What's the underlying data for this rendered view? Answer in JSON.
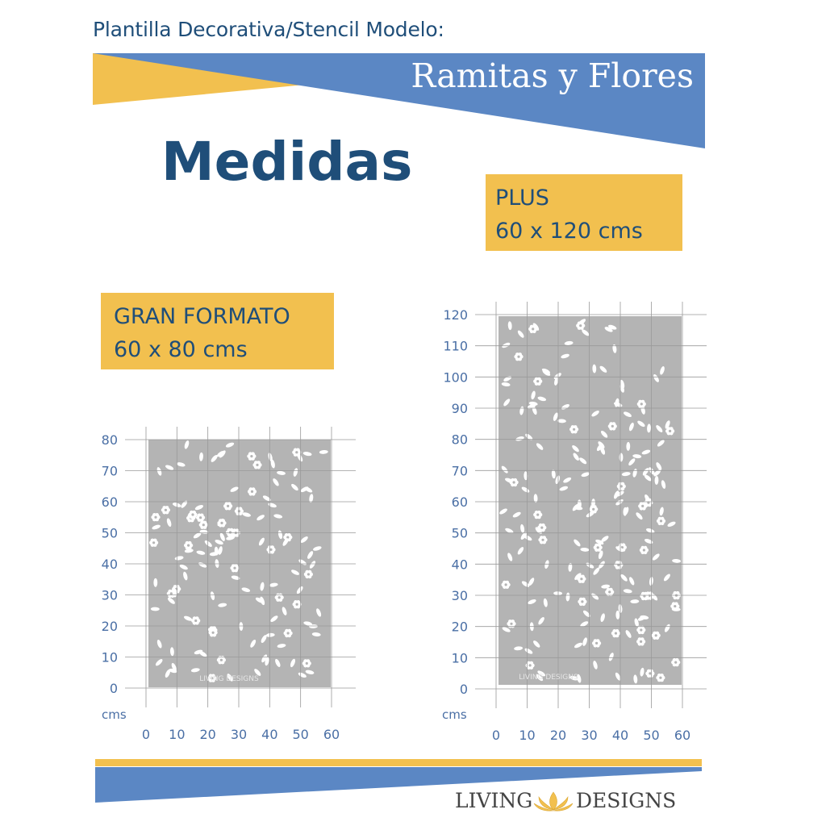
{
  "header": {
    "label": "Plantilla Decorativa/Stencil Modelo:",
    "banner_title": "Ramitas y Flores"
  },
  "heading": "Medidas",
  "sizes": {
    "plus": {
      "name": "PLUS",
      "dimensions": "60 x 120 cms"
    },
    "gran": {
      "name": "GRAN FORMATO",
      "dimensions": "60 x 80 cms"
    }
  },
  "grids": {
    "unit_label": "cms",
    "x_ticks": [
      "0",
      "10",
      "20",
      "30",
      "40",
      "50",
      "60"
    ],
    "gran_y_ticks": [
      "80",
      "70",
      "60",
      "50",
      "40",
      "30",
      "20",
      "10",
      "0"
    ],
    "plus_y_ticks": [
      "120",
      "110",
      "100",
      "90",
      "80",
      "70",
      "60",
      "50",
      "40",
      "30",
      "20",
      "10",
      "0"
    ],
    "stencil_watermark": "LIVING DESIGNS"
  },
  "logo": {
    "left": "LIVING",
    "right": "DESIGNS"
  },
  "colors": {
    "blue": "#5b87c4",
    "navy": "#1f4e79",
    "yellow": "#f2c04f",
    "stencil_gray": "#b4b4b4",
    "grid_gray": "#9a9a9a",
    "tick_blue": "#4a6fa5"
  }
}
